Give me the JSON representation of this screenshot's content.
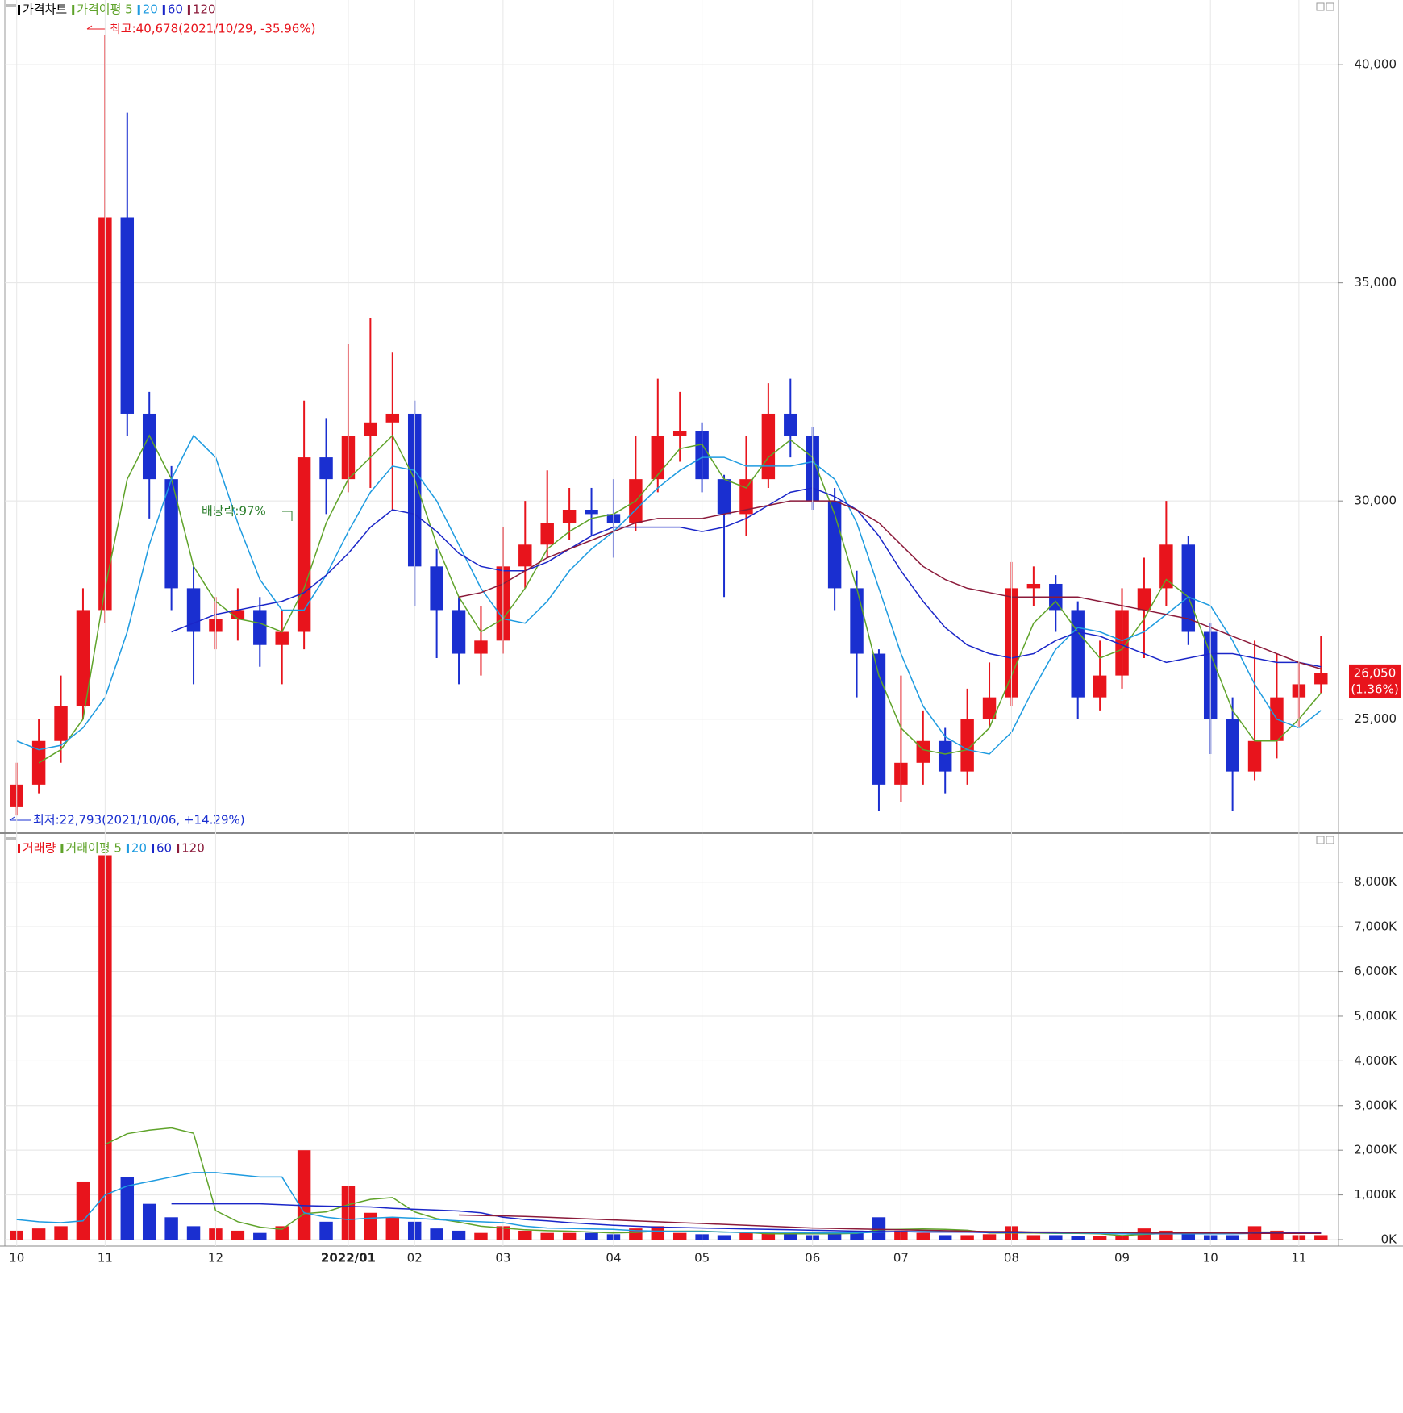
{
  "chart_data": [
    {
      "type": "candlestick",
      "legend_label": "가격차트",
      "up_color": "#e8141c",
      "down_color": "#1a2fd0",
      "annotations": {
        "high": "최고:40,678(2021/10/29, -35.96%)",
        "low": "최저:22,793(2021/10/06, +14.29%)",
        "dividend": "배당락:97%"
      },
      "last_label": "26,050",
      "change_label": "(1.36%)",
      "ylim": [
        22407,
        41481
      ],
      "yticks": [
        {
          "value": 25000,
          "label": "25,000"
        },
        {
          "value": 30000,
          "label": "30,000"
        },
        {
          "value": 35000,
          "label": "35,000"
        },
        {
          "value": 40000,
          "label": "40,000"
        }
      ],
      "grid": true,
      "open": [
        23000,
        23500,
        24500,
        25300,
        27500,
        36500,
        32000,
        30500,
        28000,
        27000,
        27300,
        27500,
        26700,
        27000,
        31000,
        30500,
        31500,
        31800,
        32000,
        28500,
        27500,
        26500,
        26800,
        28500,
        29000,
        29500,
        29800,
        29700,
        29500,
        30500,
        31500,
        31600,
        30500,
        29700,
        30500,
        32000,
        31500,
        30000,
        28000,
        26500,
        23500,
        24000,
        24500,
        23800,
        25000,
        25500,
        28000,
        28100,
        27500,
        25500,
        26000,
        27500,
        28000,
        29000,
        27000,
        25000,
        23800,
        24500,
        25500,
        25800
      ],
      "high": [
        24000,
        25000,
        26000,
        28000,
        40678,
        38900,
        32500,
        30800,
        28500,
        27800,
        28000,
        27800,
        27500,
        32300,
        31900,
        33600,
        34200,
        33400,
        32300,
        28900,
        27800,
        27600,
        29400,
        30000,
        30700,
        30300,
        30300,
        30500,
        31500,
        32800,
        32500,
        31800,
        30600,
        31500,
        32700,
        32800,
        31700,
        30300,
        28400,
        26600,
        26000,
        25200,
        24800,
        25700,
        26300,
        28600,
        28500,
        28300,
        27700,
        26800,
        28000,
        28700,
        30000,
        29200,
        27200,
        25500,
        26800,
        26500,
        26300,
        26900
      ],
      "low": [
        22793,
        23300,
        24000,
        25000,
        27200,
        31500,
        29600,
        27500,
        25800,
        26600,
        26800,
        26200,
        25800,
        26600,
        29700,
        30200,
        30300,
        29800,
        27600,
        26400,
        25800,
        26000,
        26500,
        28000,
        28700,
        29100,
        29200,
        28700,
        29300,
        30200,
        30900,
        30200,
        27800,
        29200,
        30300,
        31000,
        29800,
        27500,
        25500,
        22900,
        23100,
        23500,
        23300,
        23500,
        24800,
        25300,
        27600,
        27000,
        25000,
        25200,
        25700,
        26400,
        27600,
        26700,
        24200,
        22900,
        23600,
        24100,
        24800,
        25600
      ],
      "close": [
        23500,
        24500,
        25300,
        27500,
        36500,
        32000,
        30500,
        28000,
        27000,
        27300,
        27500,
        26700,
        27000,
        31000,
        30500,
        31500,
        31800,
        32000,
        28500,
        27500,
        26500,
        26800,
        28500,
        29000,
        29500,
        29800,
        29700,
        29500,
        30500,
        31500,
        31600,
        30500,
        29700,
        30500,
        32000,
        31500,
        30000,
        28000,
        26500,
        23500,
        24000,
        24500,
        23800,
        25000,
        25500,
        28000,
        28100,
        27500,
        25500,
        26000,
        27500,
        28000,
        29000,
        27000,
        25000,
        23800,
        24500,
        25500,
        25800,
        26050
      ],
      "series": [
        {
          "name": "가격이평 5",
          "color": "#5fa32a",
          "values": [
            null,
            24000,
            24300,
            25000,
            28000,
            30500,
            31500,
            30500,
            28500,
            27700,
            27300,
            27200,
            27000,
            28000,
            29500,
            30500,
            31000,
            31500,
            30500,
            29000,
            27800,
            27000,
            27300,
            28000,
            28900,
            29300,
            29600,
            29700,
            30000,
            30600,
            31200,
            31300,
            30500,
            30300,
            31000,
            31400,
            31000,
            29700,
            28000,
            26000,
            24800,
            24300,
            24200,
            24300,
            24800,
            26000,
            27200,
            27700,
            27000,
            26400,
            26600,
            27300,
            28200,
            27800,
            26500,
            25200,
            24500,
            24500,
            25000,
            25600
          ]
        },
        {
          "name": "20",
          "color": "#1e9be0",
          "values": [
            24500,
            24300,
            24400,
            24800,
            25500,
            27000,
            29000,
            30500,
            31500,
            31000,
            29500,
            28200,
            27500,
            27500,
            28300,
            29300,
            30200,
            30800,
            30700,
            30000,
            29000,
            28000,
            27300,
            27200,
            27700,
            28400,
            28900,
            29300,
            29800,
            30300,
            30700,
            31000,
            31000,
            30800,
            30800,
            30800,
            30900,
            30500,
            29500,
            28000,
            26500,
            25300,
            24600,
            24300,
            24200,
            24700,
            25700,
            26600,
            27100,
            27000,
            26800,
            27000,
            27400,
            27800,
            27600,
            26800,
            25800,
            25000,
            24800,
            25200
          ]
        },
        {
          "name": "60",
          "color": "#1a26c8",
          "values": [
            null,
            null,
            null,
            null,
            null,
            null,
            null,
            27000,
            27200,
            27400,
            27500,
            27600,
            27700,
            27900,
            28300,
            28800,
            29400,
            29800,
            29700,
            29300,
            28800,
            28500,
            28400,
            28400,
            28600,
            28900,
            29200,
            29400,
            29400,
            29400,
            29400,
            29300,
            29400,
            29600,
            29900,
            30200,
            30300,
            30100,
            29800,
            29200,
            28400,
            27700,
            27100,
            26700,
            26500,
            26400,
            26500,
            26800,
            27000,
            26900,
            26700,
            26500,
            26300,
            26400,
            26500,
            26500,
            26400,
            26300,
            26300,
            26200
          ]
        },
        {
          "name": "120",
          "color": "#8b1a3a",
          "values": [
            null,
            null,
            null,
            null,
            null,
            null,
            null,
            null,
            null,
            null,
            null,
            null,
            null,
            null,
            null,
            null,
            null,
            null,
            null,
            null,
            27800,
            27900,
            28100,
            28400,
            28700,
            28900,
            29100,
            29300,
            29500,
            29600,
            29600,
            29600,
            29700,
            29800,
            29900,
            30000,
            30000,
            30000,
            29800,
            29500,
            29000,
            28500,
            28200,
            28000,
            27900,
            27800,
            27800,
            27800,
            27800,
            27700,
            27600,
            27500,
            27400,
            27300,
            27100,
            26900,
            26700,
            26500,
            26300,
            26150
          ]
        }
      ]
    },
    {
      "type": "bar",
      "legend_label": "거래량",
      "categories": [
        "10",
        null,
        null,
        null,
        "11",
        null,
        null,
        null,
        null,
        "12",
        null,
        null,
        null,
        null,
        null,
        "2022/01",
        null,
        null,
        "02",
        null,
        null,
        null,
        "03",
        null,
        null,
        null,
        null,
        "04",
        null,
        null,
        null,
        "05",
        null,
        null,
        null,
        null,
        "06",
        null,
        null,
        null,
        "07",
        null,
        null,
        null,
        null,
        "08",
        null,
        null,
        null,
        null,
        "09",
        null,
        null,
        null,
        "10",
        null,
        null,
        null,
        "11",
        null
      ],
      "ylim": [
        0,
        8970
      ],
      "yticks": [
        {
          "value": 0,
          "label": "0K"
        },
        {
          "value": 1000,
          "label": "1,000K"
        },
        {
          "value": 2000,
          "label": "2,000K"
        },
        {
          "value": 3000,
          "label": "3,000K"
        },
        {
          "value": 4000,
          "label": "4,000K"
        },
        {
          "value": 5000,
          "label": "5,000K"
        },
        {
          "value": 6000,
          "label": "6,000K"
        },
        {
          "value": 7000,
          "label": "7,000K"
        },
        {
          "value": 8000,
          "label": "8,000K"
        }
      ],
      "grid": true,
      "values": [
        200,
        250,
        300,
        1300,
        8600,
        1400,
        800,
        500,
        300,
        250,
        200,
        150,
        300,
        2000,
        400,
        1200,
        600,
        500,
        400,
        250,
        200,
        150,
        300,
        200,
        150,
        150,
        150,
        120,
        250,
        300,
        150,
        120,
        100,
        150,
        150,
        120,
        100,
        150,
        200,
        500,
        200,
        150,
        100,
        100,
        120,
        300,
        100,
        100,
        80,
        80,
        100,
        250,
        200,
        150,
        100,
        100,
        300,
        200,
        100,
        100
      ],
      "series": [
        {
          "name": "거래이평 5",
          "color": "#5fa32a",
          "values": [
            null,
            null,
            null,
            null,
            2130,
            2370,
            2450,
            2500,
            2380,
            650,
            400,
            280,
            230,
            580,
            620,
            780,
            900,
            940,
            620,
            470,
            390,
            300,
            260,
            220,
            200,
            190,
            170,
            150,
            160,
            190,
            190,
            190,
            170,
            160,
            130,
            130,
            130,
            130,
            140,
            220,
            230,
            240,
            230,
            210,
            150,
            150,
            150,
            140,
            140,
            130,
            90,
            120,
            140,
            160,
            160,
            160,
            170,
            170,
            160,
            160
          ]
        },
        {
          "name": "20",
          "color": "#1e9be0",
          "values": [
            450,
            400,
            380,
            420,
            1000,
            1200,
            1300,
            1400,
            1500,
            1500,
            1450,
            1400,
            1400,
            600,
            500,
            450,
            480,
            500,
            480,
            450,
            420,
            400,
            380,
            300,
            260,
            250,
            240,
            230,
            200,
            190,
            180,
            180,
            170,
            160,
            160,
            160,
            150,
            150,
            150,
            170,
            180,
            180,
            180,
            170,
            160,
            160,
            160,
            150,
            150,
            140,
            130,
            130,
            130,
            130,
            130,
            130,
            140,
            140,
            140,
            140
          ]
        },
        {
          "name": "60",
          "color": "#1a26c8",
          "values": [
            null,
            null,
            null,
            null,
            null,
            null,
            null,
            800,
            800,
            800,
            800,
            800,
            780,
            760,
            750,
            740,
            730,
            700,
            680,
            660,
            640,
            600,
            500,
            450,
            420,
            380,
            350,
            320,
            300,
            280,
            270,
            260,
            250,
            240,
            230,
            220,
            210,
            200,
            190,
            180,
            180,
            170,
            170,
            170,
            160,
            160,
            160,
            160,
            160,
            160,
            160,
            160,
            160,
            150,
            150,
            150,
            150,
            150,
            150,
            150
          ]
        },
        {
          "name": "120",
          "color": "#8b1a3a",
          "values": [
            null,
            null,
            null,
            null,
            null,
            null,
            null,
            null,
            null,
            null,
            null,
            null,
            null,
            null,
            null,
            null,
            null,
            null,
            null,
            null,
            550,
            540,
            530,
            520,
            500,
            480,
            460,
            440,
            420,
            400,
            380,
            360,
            340,
            320,
            300,
            280,
            260,
            250,
            240,
            230,
            220,
            210,
            200,
            190,
            180,
            180,
            170,
            170,
            160,
            160,
            160,
            150,
            150,
            150,
            150,
            150,
            140,
            140,
            140,
            140
          ]
        }
      ]
    }
  ]
}
